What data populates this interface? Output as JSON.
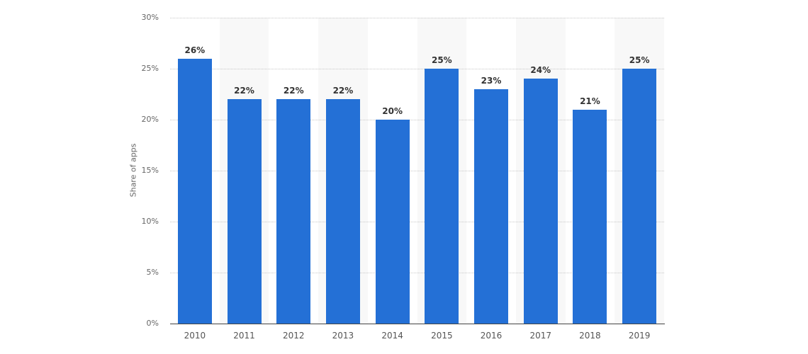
{
  "chart_data": {
    "type": "bar",
    "title": "",
    "xlabel": "",
    "ylabel": "Share of apps",
    "categories": [
      "2010",
      "2011",
      "2012",
      "2013",
      "2014",
      "2015",
      "2016",
      "2017",
      "2018",
      "2019"
    ],
    "values": [
      26,
      22,
      22,
      22,
      20,
      25,
      23,
      24,
      21,
      25
    ],
    "value_labels": [
      "26%",
      "22%",
      "22%",
      "22%",
      "20%",
      "25%",
      "23%",
      "24%",
      "21%",
      "25%"
    ],
    "ylim": [
      0,
      30
    ],
    "yticks": [
      0,
      5,
      10,
      15,
      20,
      25,
      30
    ],
    "ytick_labels": [
      "0%",
      "5%",
      "10%",
      "15%",
      "20%",
      "25%",
      "30%"
    ],
    "grid": true,
    "legend": null,
    "bar_color": "#2470d6"
  }
}
